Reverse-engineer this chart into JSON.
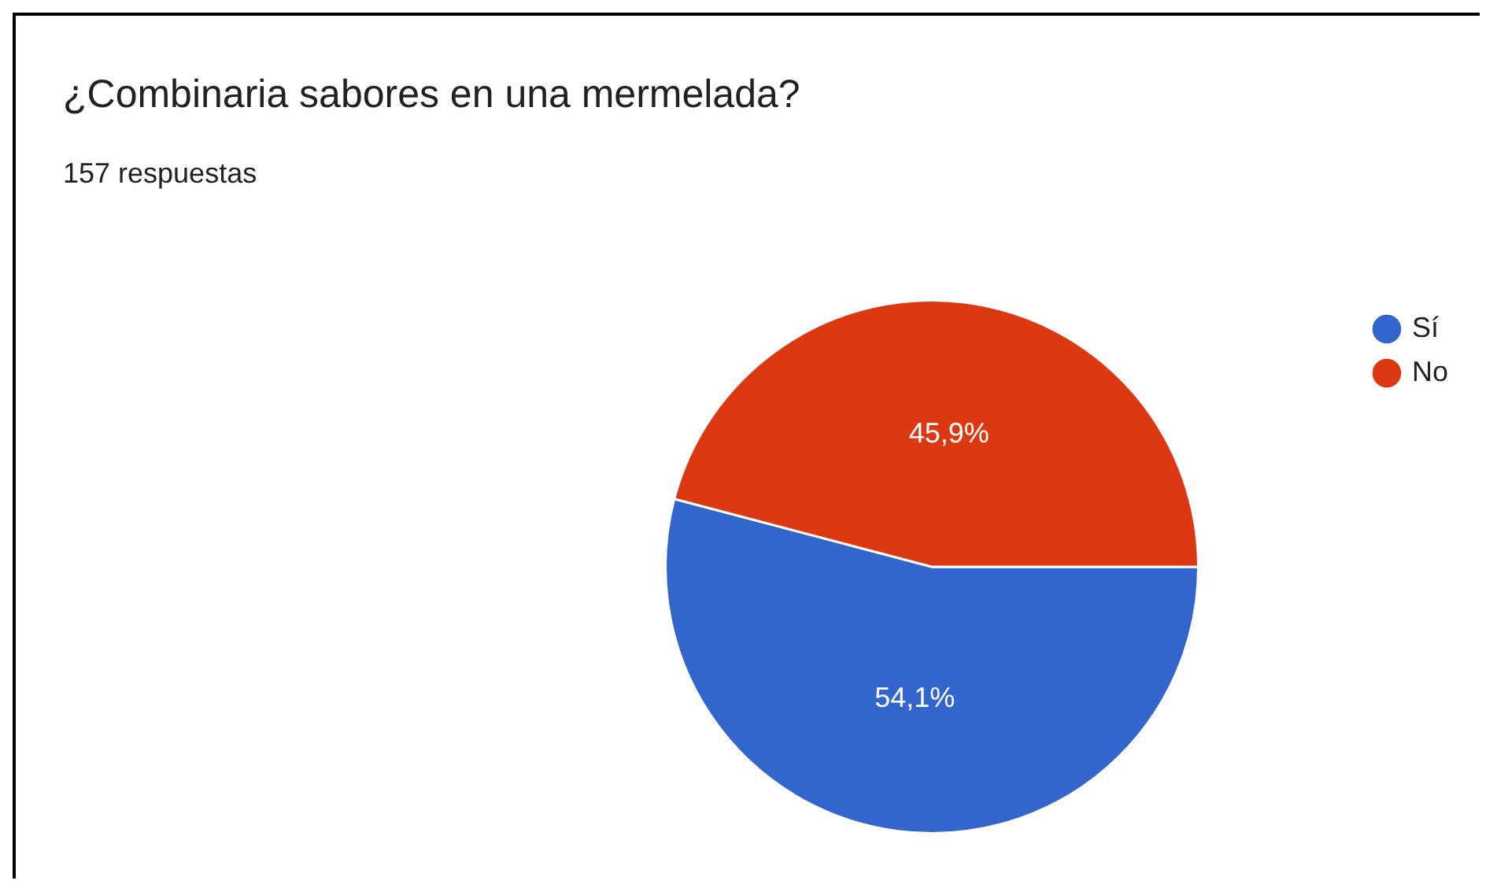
{
  "chart_data": {
    "type": "pie",
    "title": "¿Combinaria sabores en una mermelada?",
    "subtitle": "157 respuestas",
    "categories": [
      "Sí",
      "No"
    ],
    "values": [
      54.1,
      45.9
    ],
    "colors": [
      "#3366cc",
      "#dc3912"
    ],
    "value_labels": [
      "54,1%",
      "45,9%"
    ],
    "legend": "top right"
  }
}
